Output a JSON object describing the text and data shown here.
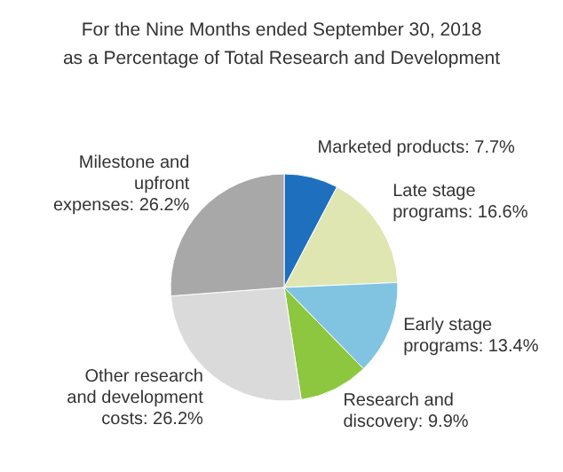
{
  "chart_data": {
    "type": "pie",
    "title": "For the Nine Months ended September 30, 2018",
    "subtitle": "as a Percentage of Total Research and Development",
    "categories": [
      "Marketed products",
      "Late stage programs",
      "Early stage programs",
      "Research and discovery",
      "Other research and development costs",
      "Milestone and upfront expenses"
    ],
    "values": [
      7.7,
      16.6,
      13.4,
      9.9,
      26.2,
      26.2
    ],
    "value_labels": [
      "7.7%",
      "16.6%",
      "13.4%",
      "9.9%",
      "26.2%",
      "26.2%"
    ],
    "colors": [
      "#1f6fbf",
      "#dfe6b2",
      "#80c4e2",
      "#8dc63f",
      "#dadada",
      "#a8a8a8"
    ]
  }
}
